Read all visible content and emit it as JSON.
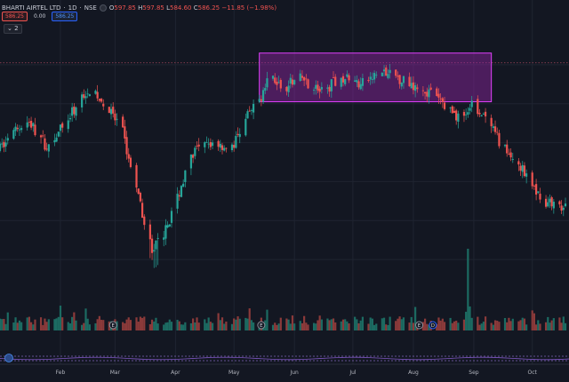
{
  "header": {
    "symbol": "BHARTI AIRTEL LTD",
    "interval": "1D",
    "exchange": "NSE",
    "separator": "·",
    "ohlc": {
      "o_label": "O",
      "o": "597.85",
      "h_label": "H",
      "h": "597.85",
      "l_label": "L",
      "l": "584.60",
      "c_label": "C",
      "c": "586.25",
      "change": "−11.85 (−1.98%)"
    },
    "sell_price": "586.25",
    "spread": "0.00",
    "buy_price": "586.25",
    "indicator_toggle": "⌄ 2"
  },
  "colors": {
    "background": "#131722",
    "up": "#26a69a",
    "down": "#ef5350",
    "volume_up": "#1c6b62",
    "volume_down": "#8b3a3a",
    "highlight_fill": "#9c27b0",
    "highlight_border": "#e040fb",
    "grid": "#1f2431",
    "axis_text": "#b2b5be",
    "reference_line": "#8d3f52"
  },
  "chart_data": {
    "type": "candlestick",
    "title": "BHARTI AIRTEL LTD · 1D · NSE",
    "x_ticks": [
      "Feb",
      "Mar",
      "Apr",
      "May",
      "Jun",
      "Jul",
      "Aug",
      "Sep",
      "Oct"
    ],
    "close_series": [
      [
        "Jan 01",
        497
      ],
      [
        "Jan 15",
        512
      ],
      [
        "Jan 25",
        498
      ],
      [
        "Feb 05",
        512
      ],
      [
        "Feb 15",
        528
      ],
      [
        "Feb 25",
        518
      ],
      [
        "Mar 05",
        505
      ],
      [
        "Mar 12",
        475
      ],
      [
        "Mar 20",
        445
      ],
      [
        "Mar 27",
        455
      ],
      [
        "Apr 03",
        475
      ],
      [
        "Apr 10",
        495
      ],
      [
        "Apr 20",
        500
      ],
      [
        "Apr 30",
        497
      ],
      [
        "May 07",
        512
      ],
      [
        "May 14",
        522
      ],
      [
        "May 20",
        535
      ],
      [
        "May 25",
        528
      ],
      [
        "Jun 05",
        533
      ],
      [
        "Jun 15",
        526
      ],
      [
        "Jun 25",
        534
      ],
      [
        "Jul 05",
        530
      ],
      [
        "Jul 15",
        536
      ],
      [
        "Jul 25",
        533
      ],
      [
        "Aug 05",
        528
      ],
      [
        "Aug 12",
        524
      ],
      [
        "Aug 25",
        512
      ],
      [
        "Sep 01",
        520
      ],
      [
        "Sep 08",
        510
      ],
      [
        "Sep 18",
        495
      ],
      [
        "Sep 25",
        488
      ],
      [
        "Oct 01",
        477
      ],
      [
        "Oct 08",
        470
      ],
      [
        "Oct 14",
        466
      ]
    ],
    "highlight_box": {
      "x_start": "May 14",
      "x_end": "Sep 10",
      "price_low": 521,
      "price_high": 546
    },
    "reference_price": 541,
    "volume_spike": {
      "date": "Aug 29"
    },
    "event_markers": [
      {
        "date": "Feb 28",
        "label": "E"
      },
      {
        "date": "May 15",
        "label": "E"
      },
      {
        "date": "Aug 04",
        "label": "E"
      },
      {
        "date": "Aug 11",
        "label": "D"
      }
    ],
    "grid": true,
    "legend": "top-left"
  }
}
